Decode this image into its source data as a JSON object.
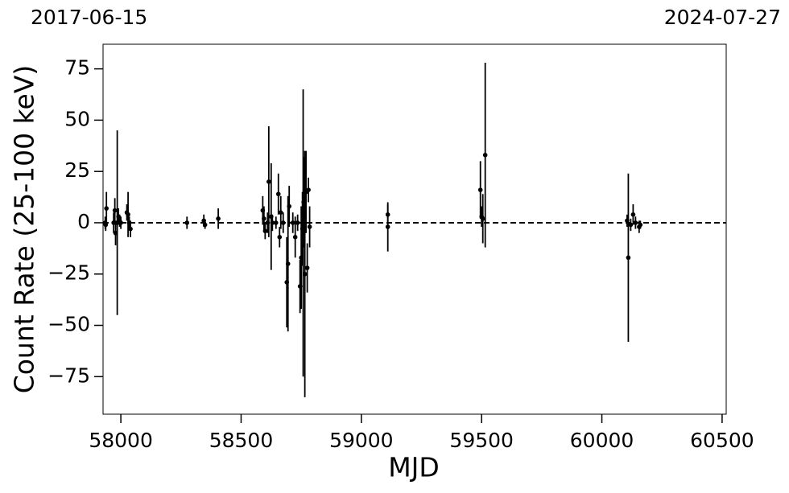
{
  "chart_data": {
    "type": "errorbar-scatter",
    "start_date": "2017-06-15",
    "end_date": "2024-07-27",
    "x_label": "MJD",
    "y_label": "Count Rate (25-100 keV)",
    "color": "#000000",
    "hline": 0,
    "xlim": [
      57926,
      60517
    ],
    "ylim": [
      -93.3,
      87
    ],
    "xticks": [
      58000,
      58500,
      59000,
      59500,
      60000,
      60500
    ],
    "yticks": [
      {
        "value": -75,
        "label": "−75"
      },
      {
        "value": -50,
        "label": "−50"
      },
      {
        "value": -25,
        "label": "−25"
      },
      0,
      25,
      50,
      75
    ],
    "x": [
      57935,
      57940,
      57937,
      57970,
      57975,
      57978,
      57985,
      57990,
      57995,
      58000,
      58025,
      58030,
      58035,
      58040,
      58275,
      58345,
      58350,
      58405,
      58590,
      58595,
      58600,
      58610,
      58615,
      58625,
      58630,
      58645,
      58655,
      58660,
      58665,
      58675,
      58690,
      58695,
      58700,
      58715,
      58725,
      58735,
      58745,
      58750,
      58755,
      58758,
      58760,
      58765,
      58770,
      58775,
      58780,
      58785,
      59110,
      59110,
      59495,
      59500,
      59505,
      59515,
      60105,
      60110,
      60120,
      60130,
      60140,
      60155,
      60160
    ],
    "values": [
      0,
      7,
      -1,
      0,
      6,
      -5,
      0,
      3,
      1,
      0,
      5,
      4,
      0,
      -3,
      0,
      1,
      -1,
      2,
      6,
      2,
      -4,
      0,
      20,
      3,
      0,
      0,
      14,
      -7,
      5,
      0,
      -29,
      -20,
      8,
      0,
      -7,
      0,
      -31,
      -17,
      -3,
      -5,
      10,
      -25,
      15,
      -22,
      16,
      -2,
      4,
      -2,
      16,
      3,
      2,
      33,
      1,
      -17,
      -1,
      4,
      0,
      -2,
      -1
    ],
    "errors": [
      3,
      8,
      3,
      5,
      6,
      6,
      45,
      4,
      3,
      3,
      4,
      11,
      3,
      4,
      3,
      3,
      2,
      5,
      7,
      6,
      4,
      5,
      27,
      26,
      4,
      3,
      10,
      5,
      8,
      5,
      22,
      33,
      10,
      5,
      10,
      4,
      13,
      25,
      18,
      70,
      22,
      60,
      20,
      12,
      6,
      10,
      5,
      12,
      14,
      5,
      12,
      45,
      3,
      41,
      3,
      5,
      3,
      3,
      2
    ]
  }
}
